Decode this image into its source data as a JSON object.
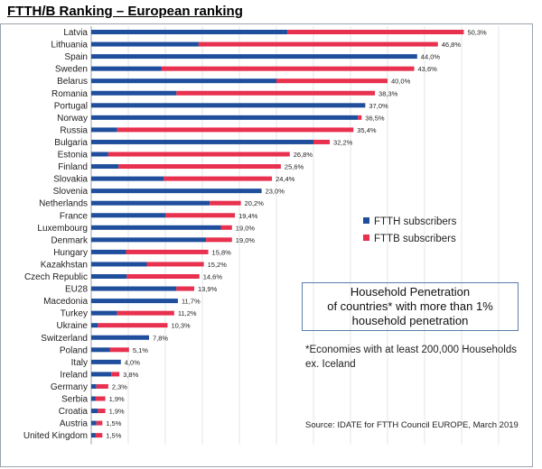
{
  "page": {
    "title": "FTTH/B Ranking – European ranking"
  },
  "chart_data": {
    "type": "bar",
    "orientation": "horizontal",
    "stacked": true,
    "title": "FTTH/B Ranking – European ranking",
    "xlabel": "",
    "ylabel": "",
    "xlim": [
      0,
      55
    ],
    "grid": true,
    "legend_position": "right",
    "categories": [
      "Latvia",
      "Lithuania",
      "Spain",
      "Sweden",
      "Belarus",
      "Romania",
      "Portugal",
      "Norway",
      "Russia",
      "Bulgaria",
      "Estonia",
      "Finland",
      "Slovakia",
      "Slovenia",
      "Netherlands",
      "France",
      "Luxembourg",
      "Denmark",
      "Hungary",
      "Kazakhstan",
      "Czech Republic",
      "EU28",
      "Macedonia",
      "Turkey",
      "Ukraine",
      "Switzerland",
      "Poland",
      "Italy",
      "Ireland",
      "Germany",
      "Serbia",
      "Croatia",
      "Austria",
      "United Kingdom"
    ],
    "series": [
      {
        "name": "FTTH subscribers",
        "color": "#1f4e9c",
        "values": [
          26.5,
          14.5,
          44.0,
          9.5,
          25.0,
          11.5,
          37.0,
          36.0,
          3.5,
          30.0,
          2.3,
          3.7,
          9.8,
          23.0,
          16.0,
          10.0,
          17.5,
          15.5,
          4.7,
          7.5,
          4.8,
          11.5,
          11.7,
          3.5,
          0.9,
          7.8,
          2.5,
          4.0,
          2.7,
          0.7,
          0.6,
          0.9,
          0.7,
          0.6
        ]
      },
      {
        "name": "FTTB subscribers",
        "color": "#e8304f",
        "values": [
          23.8,
          32.3,
          0.0,
          34.1,
          15.0,
          26.8,
          0.0,
          0.5,
          31.9,
          2.2,
          24.5,
          21.9,
          14.6,
          0.0,
          4.2,
          9.4,
          1.5,
          3.5,
          11.1,
          7.7,
          9.8,
          2.4,
          0.0,
          7.7,
          9.4,
          0.0,
          2.6,
          0.0,
          1.1,
          1.6,
          1.3,
          1.0,
          0.8,
          0.9
        ]
      }
    ],
    "totals": [
      "50,3%",
      "46,8%",
      "44,0%",
      "43,6%",
      "40,0%",
      "38,3%",
      "37,0%",
      "36,5%",
      "35,4%",
      "32,2%",
      "26,8%",
      "25,6%",
      "24,4%",
      "23,0%",
      "20,2%",
      "19,4%",
      "19,0%",
      "19,0%",
      "15,8%",
      "15,2%",
      "14,6%",
      "13,9%",
      "11,7%",
      "11,2%",
      "10,3%",
      "7,8%",
      "5,1%",
      "4,0%",
      "3,8%",
      "2,3%",
      "1,9%",
      "1,9%",
      "1,5%",
      "1,5%"
    ]
  },
  "legend": [
    {
      "label": "FTTH subscribers",
      "color": "#1f4e9c"
    },
    {
      "label": "FTTB subscribers",
      "color": "#e8304f"
    }
  ],
  "box": {
    "lines": [
      "Household Penetration",
      "of countries* with more than 1%",
      "household penetration"
    ]
  },
  "footnote": {
    "lines": [
      "*Economies with at least 200,000 Households",
      "ex. Iceland"
    ]
  },
  "source": "Source: IDATE for FTTH Council EUROPE, March 2019"
}
